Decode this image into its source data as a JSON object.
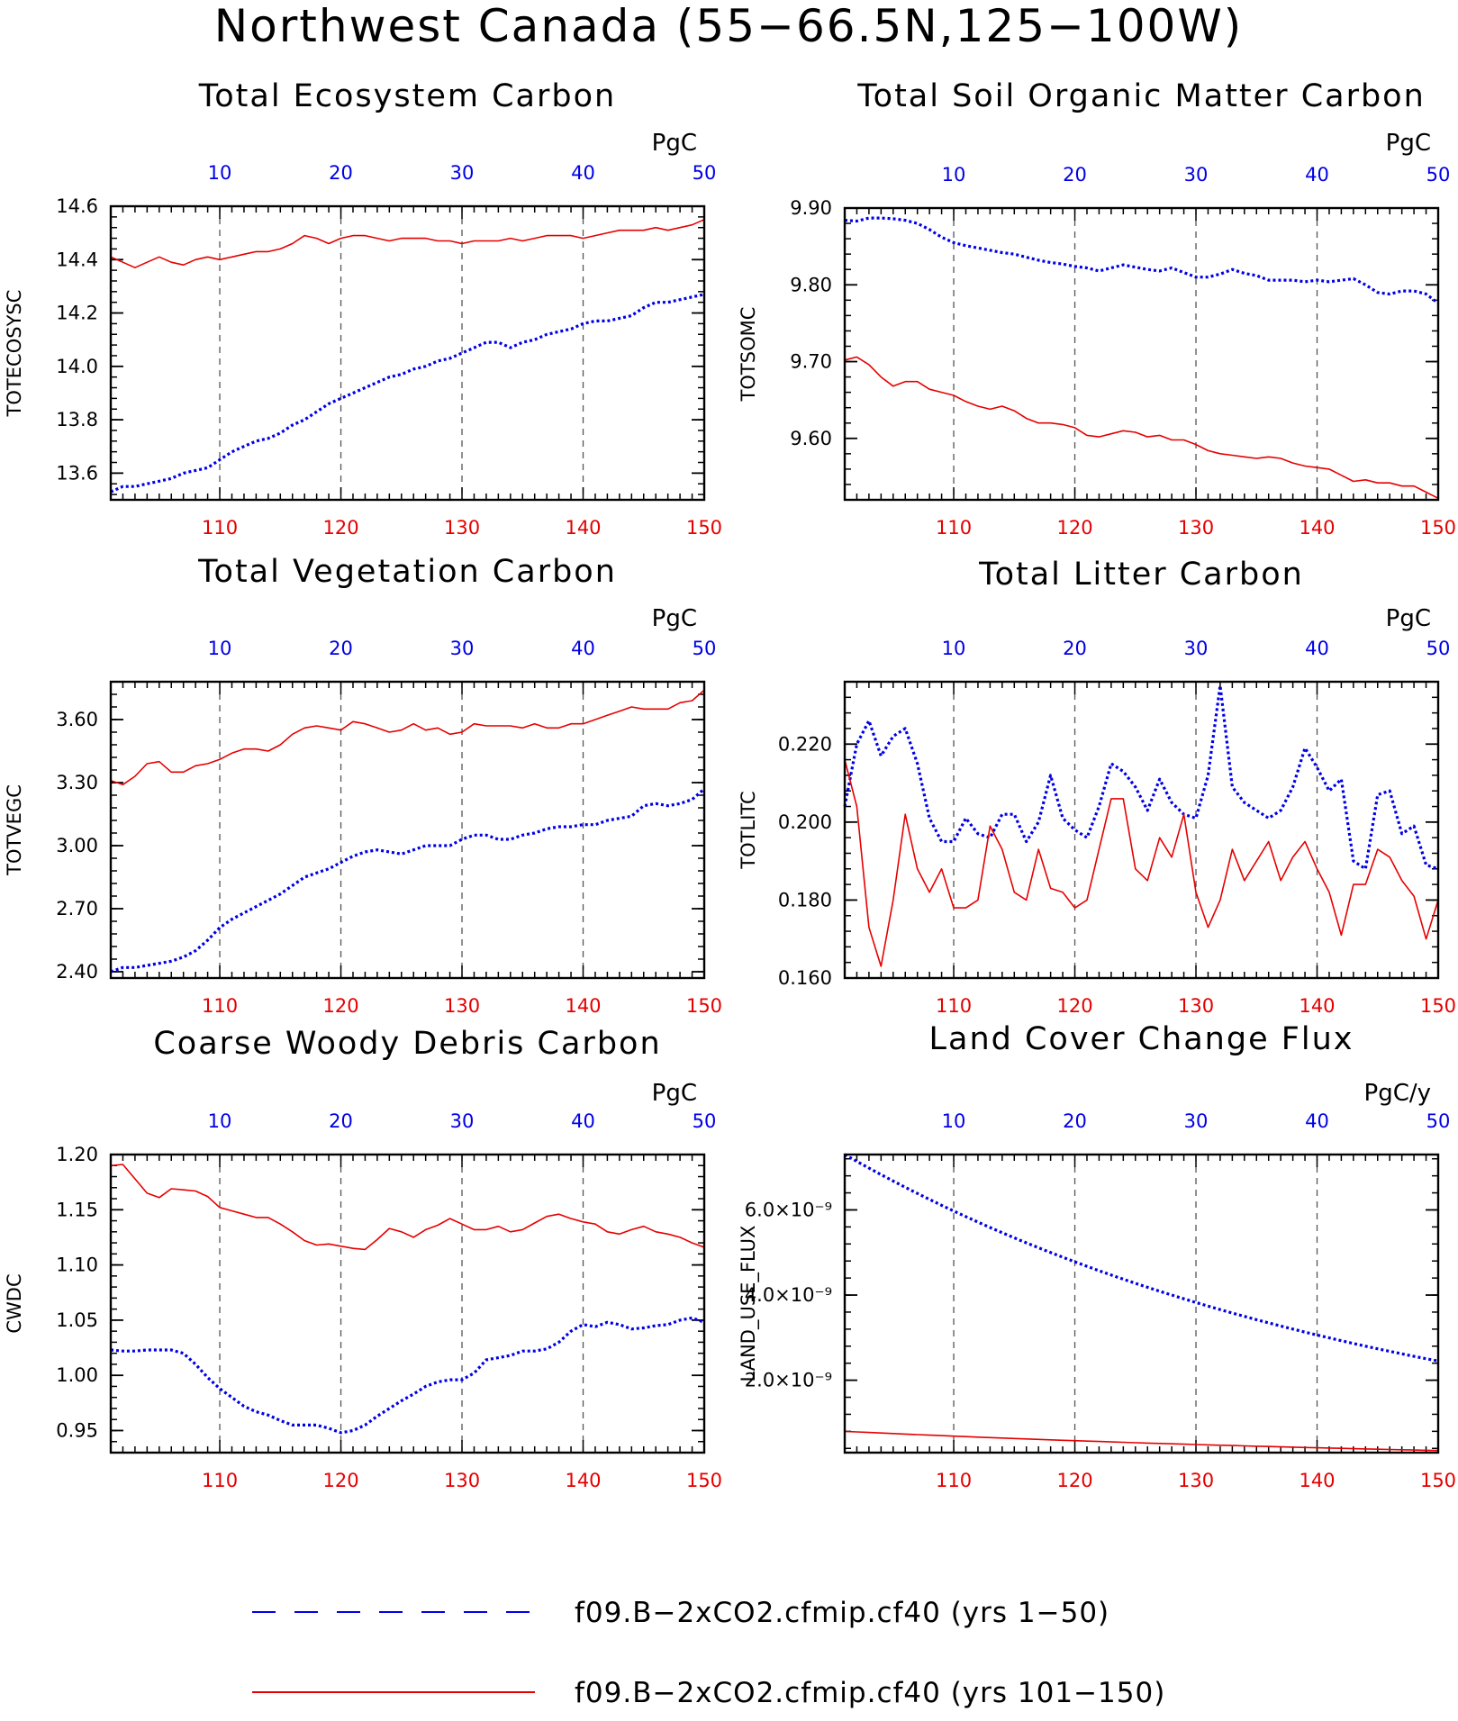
{
  "page": {
    "title": "Northwest Canada (55−66.5N,125−100W)"
  },
  "colors": {
    "series1": "#0000e6",
    "series2": "#e60000",
    "axis": "#000000",
    "grid": "#555555"
  },
  "legend": {
    "items": [
      {
        "label": "f09.B−2xCO2.cfmip.cf40 (yrs 1−50)",
        "color": "#0000e6",
        "style": "dashed"
      },
      {
        "label": "f09.B−2xCO2.cfmip.cf40 (yrs 101−150)",
        "color": "#e60000",
        "style": "solid"
      }
    ]
  },
  "chart_data": [
    {
      "type": "line",
      "title": "Total Ecosystem Carbon",
      "units": "PgC",
      "ylabel": "TOTECOSYSC",
      "ylim": [
        13.5,
        14.6
      ],
      "yticks": [
        "13.6",
        "13.8",
        "14.0",
        "14.2",
        "14.4",
        "14.6"
      ],
      "top_axis": {
        "range": [
          1,
          50
        ],
        "ticks": [
          "10",
          "20",
          "30",
          "40",
          "50"
        ]
      },
      "bottom_axis": {
        "range": [
          101,
          150
        ],
        "ticks": [
          "110",
          "120",
          "130",
          "140",
          "150"
        ]
      },
      "grid": "vertical dashed at decades",
      "series": [
        {
          "axis": "top",
          "color": "#0000e6",
          "style": "dotted",
          "values": [
            13.53,
            13.55,
            13.55,
            13.56,
            13.57,
            13.58,
            13.6,
            13.61,
            13.62,
            13.65,
            13.68,
            13.7,
            13.72,
            13.73,
            13.75,
            13.78,
            13.8,
            13.83,
            13.86,
            13.88,
            13.9,
            13.92,
            13.94,
            13.96,
            13.97,
            13.99,
            14.0,
            14.02,
            14.03,
            14.05,
            14.07,
            14.09,
            14.09,
            14.07,
            14.09,
            14.1,
            14.12,
            14.13,
            14.14,
            14.16,
            14.17,
            14.17,
            14.18,
            14.19,
            14.22,
            14.24,
            14.24,
            14.25,
            14.26,
            14.27
          ]
        },
        {
          "axis": "bottom",
          "color": "#e60000",
          "style": "solid",
          "values": [
            14.41,
            14.39,
            14.37,
            14.39,
            14.41,
            14.39,
            14.38,
            14.4,
            14.41,
            14.4,
            14.41,
            14.42,
            14.43,
            14.43,
            14.44,
            14.46,
            14.49,
            14.48,
            14.46,
            14.48,
            14.49,
            14.49,
            14.48,
            14.47,
            14.48,
            14.48,
            14.48,
            14.47,
            14.47,
            14.46,
            14.47,
            14.47,
            14.47,
            14.48,
            14.47,
            14.48,
            14.49,
            14.49,
            14.49,
            14.48,
            14.49,
            14.5,
            14.51,
            14.51,
            14.51,
            14.52,
            14.51,
            14.52,
            14.53,
            14.55
          ]
        }
      ]
    },
    {
      "type": "line",
      "title": "Total Soil Organic Matter Carbon",
      "units": "PgC",
      "ylabel": "TOTSOMC",
      "ylim": [
        9.52,
        9.9
      ],
      "yticks": [
        "9.60",
        "9.70",
        "9.80",
        "9.90"
      ],
      "top_axis": {
        "range": [
          1,
          50
        ],
        "ticks": [
          "10",
          "20",
          "30",
          "40",
          "50"
        ]
      },
      "bottom_axis": {
        "range": [
          101,
          150
        ],
        "ticks": [
          "110",
          "120",
          "130",
          "140",
          "150"
        ]
      },
      "grid": "vertical dashed at decades",
      "series": [
        {
          "axis": "top",
          "color": "#0000e6",
          "style": "dotted",
          "values": [
            9.884,
            9.883,
            9.887,
            9.887,
            9.886,
            9.884,
            9.88,
            9.872,
            9.862,
            9.855,
            9.851,
            9.848,
            9.845,
            9.842,
            9.84,
            9.836,
            9.832,
            9.829,
            9.827,
            9.824,
            9.822,
            9.818,
            9.822,
            9.826,
            9.823,
            9.82,
            9.818,
            9.822,
            9.816,
            9.81,
            9.81,
            9.814,
            9.82,
            9.815,
            9.812,
            9.806,
            9.806,
            9.806,
            9.804,
            9.806,
            9.804,
            9.806,
            9.808,
            9.8,
            9.79,
            9.788,
            9.792,
            9.792,
            9.788,
            9.776
          ]
        },
        {
          "axis": "bottom",
          "color": "#e60000",
          "style": "solid",
          "values": [
            9.702,
            9.706,
            9.696,
            9.68,
            9.668,
            9.674,
            9.674,
            9.664,
            9.66,
            9.656,
            9.648,
            9.642,
            9.638,
            9.642,
            9.636,
            9.626,
            9.62,
            9.62,
            9.618,
            9.614,
            9.604,
            9.602,
            9.606,
            9.61,
            9.608,
            9.602,
            9.604,
            9.598,
            9.598,
            9.592,
            9.584,
            9.58,
            9.578,
            9.576,
            9.574,
            9.576,
            9.574,
            9.568,
            9.564,
            9.562,
            9.56,
            9.552,
            9.544,
            9.546,
            9.542,
            9.542,
            9.538,
            9.538,
            9.53,
            9.522
          ]
        }
      ]
    },
    {
      "type": "line",
      "title": "Total Vegetation Carbon",
      "units": "PgC",
      "ylabel": "TOTVEGC",
      "ylim": [
        2.37,
        3.78
      ],
      "yticks": [
        "2.40",
        "2.70",
        "3.00",
        "3.30",
        "3.60"
      ],
      "top_axis": {
        "range": [
          1,
          50
        ],
        "ticks": [
          "10",
          "20",
          "30",
          "40",
          "50"
        ]
      },
      "bottom_axis": {
        "range": [
          101,
          150
        ],
        "ticks": [
          "110",
          "120",
          "130",
          "140",
          "150"
        ]
      },
      "grid": "vertical dashed at decades",
      "series": [
        {
          "axis": "top",
          "color": "#0000e6",
          "style": "dotted",
          "values": [
            2.4,
            2.42,
            2.42,
            2.43,
            2.44,
            2.45,
            2.47,
            2.5,
            2.55,
            2.61,
            2.65,
            2.68,
            2.71,
            2.74,
            2.77,
            2.81,
            2.85,
            2.87,
            2.89,
            2.92,
            2.95,
            2.97,
            2.98,
            2.97,
            2.96,
            2.98,
            3.0,
            3.0,
            3.0,
            3.03,
            3.05,
            3.05,
            3.03,
            3.03,
            3.05,
            3.06,
            3.08,
            3.09,
            3.09,
            3.1,
            3.1,
            3.12,
            3.13,
            3.14,
            3.19,
            3.2,
            3.19,
            3.2,
            3.22,
            3.27
          ]
        },
        {
          "axis": "bottom",
          "color": "#e60000",
          "style": "solid",
          "values": [
            3.31,
            3.29,
            3.33,
            3.39,
            3.4,
            3.35,
            3.35,
            3.38,
            3.39,
            3.41,
            3.44,
            3.46,
            3.46,
            3.45,
            3.48,
            3.53,
            3.56,
            3.57,
            3.56,
            3.55,
            3.59,
            3.58,
            3.56,
            3.54,
            3.55,
            3.58,
            3.55,
            3.56,
            3.53,
            3.54,
            3.58,
            3.57,
            3.57,
            3.57,
            3.56,
            3.58,
            3.56,
            3.56,
            3.58,
            3.58,
            3.6,
            3.62,
            3.64,
            3.66,
            3.65,
            3.65,
            3.65,
            3.68,
            3.69,
            3.74
          ]
        }
      ]
    },
    {
      "type": "line",
      "title": "Total Litter Carbon",
      "units": "PgC",
      "ylabel": "TOTLITC",
      "ylim": [
        0.16,
        0.236
      ],
      "yticks": [
        "0.160",
        "0.180",
        "0.200",
        "0.220"
      ],
      "top_axis": {
        "range": [
          1,
          50
        ],
        "ticks": [
          "10",
          "20",
          "30",
          "40",
          "50"
        ]
      },
      "bottom_axis": {
        "range": [
          101,
          150
        ],
        "ticks": [
          "110",
          "120",
          "130",
          "140",
          "150"
        ]
      },
      "grid": "vertical dashed at decades",
      "series": [
        {
          "axis": "top",
          "color": "#0000e6",
          "style": "dotted",
          "values": [
            0.204,
            0.22,
            0.226,
            0.217,
            0.222,
            0.224,
            0.215,
            0.201,
            0.195,
            0.195,
            0.201,
            0.197,
            0.196,
            0.202,
            0.202,
            0.195,
            0.2,
            0.212,
            0.201,
            0.198,
            0.196,
            0.204,
            0.215,
            0.213,
            0.209,
            0.203,
            0.211,
            0.205,
            0.202,
            0.201,
            0.212,
            0.235,
            0.209,
            0.205,
            0.203,
            0.201,
            0.203,
            0.209,
            0.219,
            0.214,
            0.208,
            0.211,
            0.19,
            0.188,
            0.207,
            0.208,
            0.197,
            0.199,
            0.189,
            0.188
          ]
        },
        {
          "axis": "bottom",
          "color": "#e60000",
          "style": "solid",
          "values": [
            0.216,
            0.204,
            0.173,
            0.163,
            0.18,
            0.202,
            0.188,
            0.182,
            0.188,
            0.178,
            0.178,
            0.18,
            0.199,
            0.193,
            0.182,
            0.18,
            0.193,
            0.183,
            0.182,
            0.178,
            0.18,
            0.193,
            0.206,
            0.206,
            0.188,
            0.185,
            0.196,
            0.191,
            0.202,
            0.182,
            0.173,
            0.18,
            0.193,
            0.185,
            0.19,
            0.195,
            0.185,
            0.191,
            0.195,
            0.188,
            0.182,
            0.171,
            0.184,
            0.184,
            0.193,
            0.191,
            0.185,
            0.181,
            0.17,
            0.18
          ]
        }
      ]
    },
    {
      "type": "line",
      "title": "Coarse Woody Debris Carbon",
      "units": "PgC",
      "ylabel": "CWDC",
      "ylim": [
        0.93,
        1.2
      ],
      "yticks": [
        "0.95",
        "1.00",
        "1.05",
        "1.10",
        "1.15",
        "1.20"
      ],
      "top_axis": {
        "range": [
          1,
          50
        ],
        "ticks": [
          "10",
          "20",
          "30",
          "40",
          "50"
        ]
      },
      "bottom_axis": {
        "range": [
          101,
          150
        ],
        "ticks": [
          "110",
          "120",
          "130",
          "140",
          "150"
        ]
      },
      "grid": "vertical dashed at decades",
      "series": [
        {
          "axis": "top",
          "color": "#0000e6",
          "style": "dotted",
          "values": [
            1.023,
            1.022,
            1.022,
            1.023,
            1.023,
            1.023,
            1.02,
            1.01,
            0.998,
            0.988,
            0.98,
            0.972,
            0.967,
            0.964,
            0.959,
            0.955,
            0.955,
            0.955,
            0.952,
            0.948,
            0.95,
            0.955,
            0.963,
            0.97,
            0.977,
            0.983,
            0.99,
            0.994,
            0.996,
            0.996,
            1.002,
            1.014,
            1.016,
            1.018,
            1.022,
            1.022,
            1.024,
            1.03,
            1.04,
            1.046,
            1.044,
            1.048,
            1.046,
            1.042,
            1.043,
            1.045,
            1.046,
            1.05,
            1.052,
            1.048
          ]
        },
        {
          "axis": "bottom",
          "color": "#e60000",
          "style": "solid",
          "values": [
            1.19,
            1.191,
            1.178,
            1.165,
            1.161,
            1.169,
            1.168,
            1.167,
            1.162,
            1.152,
            1.149,
            1.146,
            1.143,
            1.143,
            1.137,
            1.13,
            1.122,
            1.118,
            1.119,
            1.117,
            1.115,
            1.114,
            1.123,
            1.133,
            1.13,
            1.125,
            1.132,
            1.136,
            1.142,
            1.137,
            1.132,
            1.132,
            1.135,
            1.13,
            1.132,
            1.138,
            1.144,
            1.146,
            1.142,
            1.139,
            1.137,
            1.13,
            1.128,
            1.132,
            1.135,
            1.13,
            1.128,
            1.125,
            1.12,
            1.116
          ]
        }
      ]
    },
    {
      "type": "line",
      "title": "Land Cover Change Flux",
      "units": "PgC/y",
      "ylabel": "LAND_USE_FLUX",
      "ylim": [
        3e-10,
        7.3e-09
      ],
      "yticks": [
        "2.0×10⁻⁹",
        "4.0×10⁻⁹",
        "6.0×10⁻⁹"
      ],
      "ytick_values": [
        2e-09,
        4e-09,
        6e-09
      ],
      "top_axis": {
        "range": [
          1,
          50
        ],
        "ticks": [
          "10",
          "20",
          "30",
          "40",
          "50"
        ]
      },
      "bottom_axis": {
        "range": [
          101,
          150
        ],
        "ticks": [
          "110",
          "120",
          "130",
          "140",
          "150"
        ]
      },
      "grid": "vertical dashed at decades",
      "series": [
        {
          "axis": "top",
          "color": "#0000e6",
          "style": "dotted",
          "model": "exponential",
          "start": 7.3e-09,
          "end": 2.45e-09
        },
        {
          "axis": "bottom",
          "color": "#e60000",
          "style": "solid",
          "model": "exponential",
          "start": 8e-10,
          "end": 3.5e-10
        }
      ]
    }
  ]
}
